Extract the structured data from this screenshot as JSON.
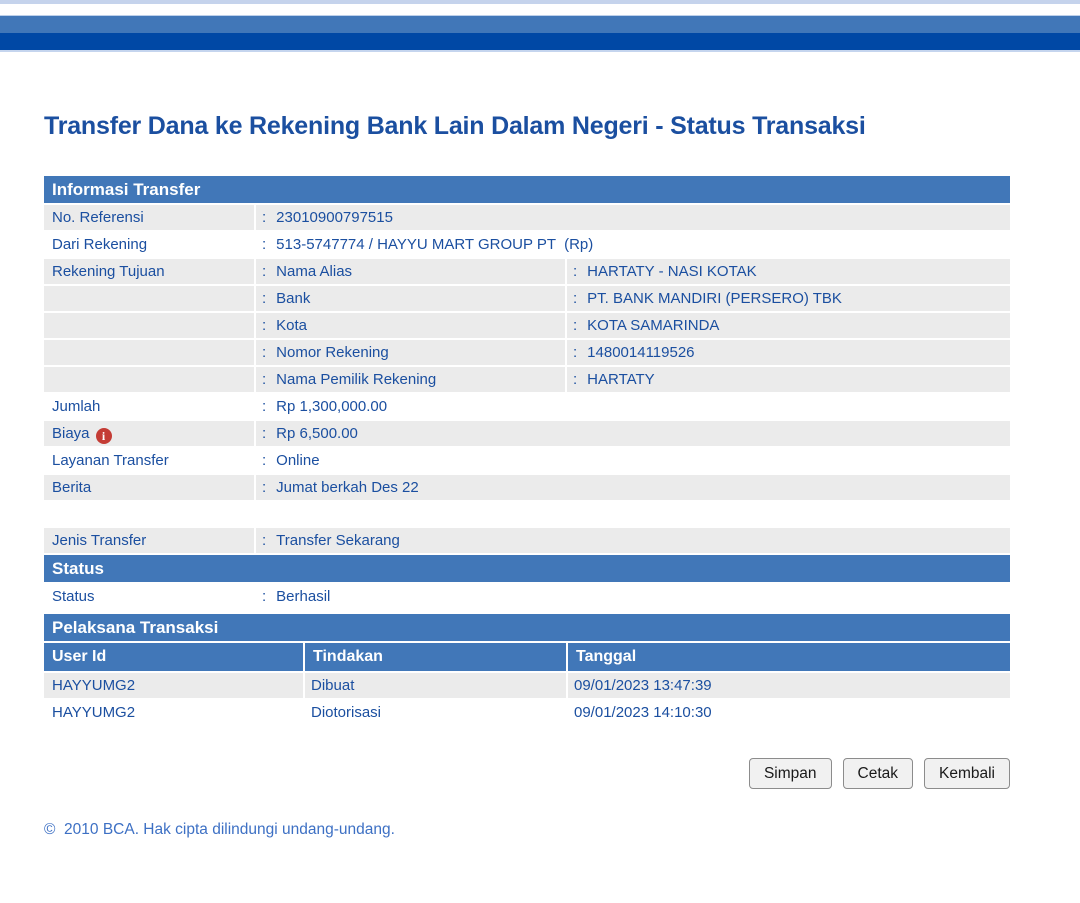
{
  "page": {
    "title": "Transfer Dana ke Rekening Bank Lain Dalam Negeri - Status Transaksi",
    "footer": "©  2010 BCA. Hak cipta dilindungi undang-undang."
  },
  "colors": {
    "bar_medium_blue": "#4177b8",
    "bar_dark_blue": "#0048a5",
    "section_header_blue": "#4177b8",
    "text_blue": "#1b4fa0",
    "row_gray": "#ebebeb",
    "info_icon_red": "#c43c35",
    "footer_blue": "#3d70c4"
  },
  "icons": {
    "info_glyph": "i"
  },
  "transfer_info": {
    "header": "Informasi Transfer",
    "rows": [
      {
        "label": "No. Referensi",
        "value": "23010900797515"
      },
      {
        "label": "Dari Rekening",
        "value": "513-5747774 / HAYYU MART GROUP PT  (Rp)"
      },
      {
        "label": "Rekening Tujuan",
        "sublabel": "Nama Alias",
        "value": "HARTATY - NASI KOTAK"
      },
      {
        "label": "",
        "sublabel": "Bank",
        "value": "PT. BANK MANDIRI (PERSERO) TBK"
      },
      {
        "label": "",
        "sublabel": "Kota",
        "value": "KOTA SAMARINDA"
      },
      {
        "label": "",
        "sublabel": "Nomor Rekening",
        "value": "1480014119526"
      },
      {
        "label": "",
        "sublabel": "Nama Pemilik Rekening",
        "value": "HARTATY"
      },
      {
        "label": "Jumlah",
        "value": "Rp 1,300,000.00"
      },
      {
        "label": "Biaya",
        "value": "Rp 6,500.00"
      },
      {
        "label": "Layanan Transfer",
        "value": "Online"
      },
      {
        "label": "Berita",
        "value": "Jumat berkah Des 22"
      }
    ]
  },
  "jenis_transfer": {
    "label": "Jenis Transfer",
    "value": "Transfer Sekarang"
  },
  "status_section": {
    "header": "Status",
    "label": "Status",
    "value": "Berhasil"
  },
  "pelaksana": {
    "header": "Pelaksana Transaksi",
    "columns": [
      "User Id",
      "Tindakan",
      "Tanggal"
    ],
    "rows": [
      [
        "HAYYUMG2",
        "Dibuat",
        "09/01/2023 13:47:39"
      ],
      [
        "HAYYUMG2",
        "Diotorisasi",
        "09/01/2023 14:10:30"
      ]
    ]
  },
  "buttons": {
    "simpan": "Simpan",
    "cetak": "Cetak",
    "kembali": "Kembali"
  }
}
